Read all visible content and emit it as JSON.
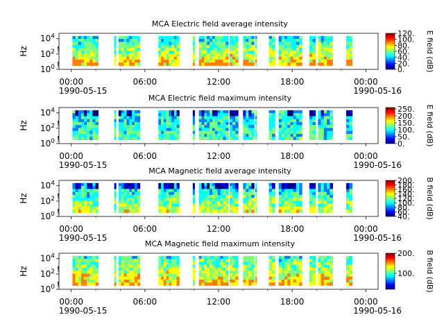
{
  "colormap": [
    "#00007f",
    "#0000ff",
    "#007fff",
    "#00ffff",
    "#7fff7f",
    "#ffff00",
    "#ff7f00",
    "#ff0000",
    "#7f0000"
  ],
  "x_ticks": [
    "00:00",
    "06:00",
    "12:00",
    "18:00",
    "00:00"
  ],
  "x_hours": [
    0,
    6,
    12,
    18,
    24
  ],
  "date_start": "1990-05-15",
  "date_end": "1990-05-16",
  "y_ticks": [
    {
      "exp": "0",
      "dec": 0
    },
    {
      "exp": "2",
      "dec": 2
    },
    {
      "exp": "4",
      "dec": 4
    }
  ],
  "y_base": "10",
  "data_intervals_hours": [
    [
      0.1,
      2.2
    ],
    [
      3.5,
      3.65
    ],
    [
      3.85,
      5.6
    ],
    [
      7.1,
      8.8
    ],
    [
      9.9,
      10.05
    ],
    [
      10.4,
      12.8
    ],
    [
      12.9,
      13.6
    ],
    [
      14.0,
      14.9
    ],
    [
      15.0,
      15.1
    ],
    [
      16.1,
      16.6
    ],
    [
      16.9,
      18.8
    ],
    [
      19.4,
      19.9
    ],
    [
      20.1,
      21.3
    ],
    [
      22.4,
      22.9
    ]
  ],
  "chart_data": [
    {
      "type": "heatmap",
      "title": "MCA  Electric field average intensity",
      "ylabel": "Hz",
      "ylim_log10": [
        0,
        4.7
      ],
      "x_range_hours": [
        -1,
        25
      ],
      "colorbar_label": "E field (dB)",
      "colorbar_range": [
        0,
        120
      ],
      "colorbar_ticks": [
        "0.",
        "20.",
        "40.",
        "60.",
        "80.",
        "100.",
        "120."
      ],
      "colorbar_tick_values": [
        0,
        20,
        40,
        60,
        80,
        100,
        120
      ]
    },
    {
      "type": "heatmap",
      "title": "MCA  Electric field maximum intensity",
      "ylabel": "Hz",
      "ylim_log10": [
        0,
        4.7
      ],
      "x_range_hours": [
        -1,
        25
      ],
      "colorbar_label": "E field (dB)",
      "colorbar_range": [
        0,
        260
      ],
      "colorbar_ticks": [
        "0.",
        "50.",
        "100.",
        "150.",
        "200.",
        "250."
      ],
      "colorbar_tick_values": [
        0,
        50,
        100,
        150,
        200,
        250
      ]
    },
    {
      "type": "heatmap",
      "title": "MCA  Magnetic field average intensity",
      "ylabel": "Hz",
      "ylim_log10": [
        0,
        4.7
      ],
      "x_range_hours": [
        -1,
        25
      ],
      "colorbar_label": "B field (dB)",
      "colorbar_range": [
        40,
        200
      ],
      "colorbar_ticks": [
        "40.",
        "60.",
        "80.",
        "100.",
        "120.",
        "140.",
        "160.",
        "180.",
        "200."
      ],
      "colorbar_tick_values": [
        40,
        60,
        80,
        100,
        120,
        140,
        160,
        180,
        200
      ]
    },
    {
      "type": "heatmap",
      "title": "MCA  Magnetic field maximum intensity",
      "ylabel": "Hz",
      "ylim_log10": [
        0,
        4.7
      ],
      "x_range_hours": [
        -1,
        25
      ],
      "colorbar_label": "B field (dB)",
      "colorbar_range": [
        20,
        200
      ],
      "colorbar_ticks": [
        "100.",
        "200."
      ],
      "colorbar_tick_values": [
        100,
        200
      ]
    }
  ]
}
